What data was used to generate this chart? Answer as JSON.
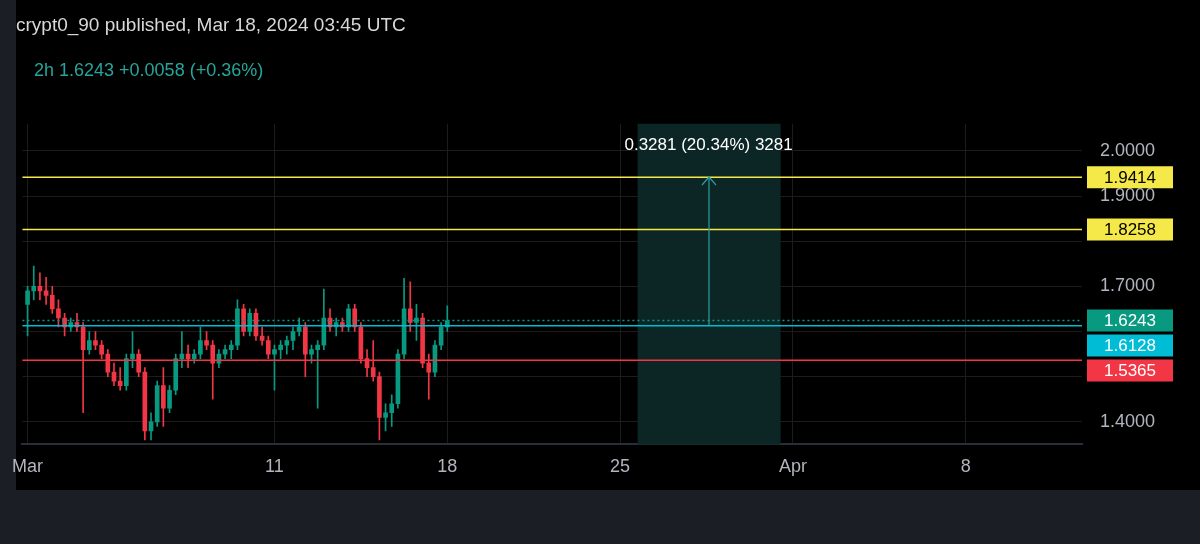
{
  "chart_data": {
    "type": "candlestick",
    "title": "crypt0_90 published, Mar 18, 2024 03:45 UTC",
    "subtitle": "2h 1.6243 +0.0058 (+0.36%)",
    "x": [
      "2024-03-01T00:00",
      "2024-03-01T06:00",
      "2024-03-01T12:00",
      "2024-03-01T18:00",
      "2024-03-02T00:00",
      "2024-03-02T06:00",
      "2024-03-02T12:00",
      "2024-03-02T18:00",
      "2024-03-03T00:00",
      "2024-03-03T06:00",
      "2024-03-03T12:00",
      "2024-03-03T18:00",
      "2024-03-04T00:00",
      "2024-03-04T06:00",
      "2024-03-04T12:00",
      "2024-03-04T18:00",
      "2024-03-05T00:00",
      "2024-03-05T06:00",
      "2024-03-05T12:00",
      "2024-03-05T18:00",
      "2024-03-06T00:00",
      "2024-03-06T06:00",
      "2024-03-06T12:00",
      "2024-03-06T18:00",
      "2024-03-07T00:00",
      "2024-03-07T06:00",
      "2024-03-07T12:00",
      "2024-03-07T18:00",
      "2024-03-08T00:00",
      "2024-03-08T06:00",
      "2024-03-08T12:00",
      "2024-03-08T18:00",
      "2024-03-09T00:00",
      "2024-03-09T06:00",
      "2024-03-09T12:00",
      "2024-03-09T18:00",
      "2024-03-10T00:00",
      "2024-03-10T06:00",
      "2024-03-10T12:00",
      "2024-03-10T18:00",
      "2024-03-11T00:00",
      "2024-03-11T06:00",
      "2024-03-11T12:00",
      "2024-03-11T18:00",
      "2024-03-12T00:00",
      "2024-03-12T06:00",
      "2024-03-12T12:00",
      "2024-03-12T18:00",
      "2024-03-13T00:00",
      "2024-03-13T06:00",
      "2024-03-13T12:00",
      "2024-03-13T18:00",
      "2024-03-14T00:00",
      "2024-03-14T06:00",
      "2024-03-14T12:00",
      "2024-03-14T18:00",
      "2024-03-15T00:00",
      "2024-03-15T06:00",
      "2024-03-15T12:00",
      "2024-03-15T18:00",
      "2024-03-16T00:00",
      "2024-03-16T06:00",
      "2024-03-16T12:00",
      "2024-03-16T18:00",
      "2024-03-17T00:00",
      "2024-03-17T06:00",
      "2024-03-17T12:00",
      "2024-03-17T18:00",
      "2024-03-18T00:00"
    ],
    "ohlc": [
      [
        1.66,
        1.7,
        1.59,
        1.69
      ],
      [
        1.69,
        1.745,
        1.67,
        1.7
      ],
      [
        1.7,
        1.73,
        1.67,
        1.69
      ],
      [
        1.69,
        1.72,
        1.66,
        1.68
      ],
      [
        1.68,
        1.7,
        1.64,
        1.65
      ],
      [
        1.65,
        1.67,
        1.61,
        1.63
      ],
      [
        1.63,
        1.64,
        1.59,
        1.61
      ],
      [
        1.61,
        1.63,
        1.6,
        1.62
      ],
      [
        1.62,
        1.64,
        1.6,
        1.61
      ],
      [
        1.61,
        1.62,
        1.42,
        1.56
      ],
      [
        1.56,
        1.6,
        1.55,
        1.58
      ],
      [
        1.58,
        1.6,
        1.56,
        1.57
      ],
      [
        1.57,
        1.58,
        1.54,
        1.55
      ],
      [
        1.55,
        1.56,
        1.5,
        1.51
      ],
      [
        1.51,
        1.53,
        1.48,
        1.49
      ],
      [
        1.49,
        1.52,
        1.47,
        1.48
      ],
      [
        1.48,
        1.55,
        1.47,
        1.54
      ],
      [
        1.54,
        1.6,
        1.52,
        1.55
      ],
      [
        1.55,
        1.56,
        1.5,
        1.51
      ],
      [
        1.51,
        1.52,
        1.36,
        1.38
      ],
      [
        1.38,
        1.42,
        1.36,
        1.4
      ],
      [
        1.4,
        1.49,
        1.39,
        1.48
      ],
      [
        1.48,
        1.52,
        1.39,
        1.43
      ],
      [
        1.43,
        1.48,
        1.42,
        1.47
      ],
      [
        1.47,
        1.55,
        1.46,
        1.54
      ],
      [
        1.54,
        1.6,
        1.52,
        1.55
      ],
      [
        1.55,
        1.57,
        1.52,
        1.54
      ],
      [
        1.54,
        1.56,
        1.53,
        1.55
      ],
      [
        1.55,
        1.61,
        1.54,
        1.58
      ],
      [
        1.58,
        1.6,
        1.56,
        1.57
      ],
      [
        1.57,
        1.58,
        1.45,
        1.53
      ],
      [
        1.53,
        1.56,
        1.52,
        1.55
      ],
      [
        1.55,
        1.57,
        1.54,
        1.56
      ],
      [
        1.56,
        1.58,
        1.54,
        1.57
      ],
      [
        1.57,
        1.67,
        1.56,
        1.65
      ],
      [
        1.65,
        1.66,
        1.59,
        1.6
      ],
      [
        1.6,
        1.65,
        1.59,
        1.64
      ],
      [
        1.64,
        1.65,
        1.58,
        1.59
      ],
      [
        1.59,
        1.61,
        1.57,
        1.58
      ],
      [
        1.58,
        1.59,
        1.54,
        1.55
      ],
      [
        1.55,
        1.57,
        1.47,
        1.56
      ],
      [
        1.56,
        1.58,
        1.54,
        1.57
      ],
      [
        1.57,
        1.59,
        1.55,
        1.58
      ],
      [
        1.58,
        1.61,
        1.56,
        1.6
      ],
      [
        1.6,
        1.63,
        1.59,
        1.61
      ],
      [
        1.61,
        1.62,
        1.5,
        1.55
      ],
      [
        1.55,
        1.57,
        1.53,
        1.56
      ],
      [
        1.56,
        1.58,
        1.43,
        1.57
      ],
      [
        1.57,
        1.694,
        1.56,
        1.63
      ],
      [
        1.63,
        1.65,
        1.6,
        1.61
      ],
      [
        1.61,
        1.63,
        1.59,
        1.62
      ],
      [
        1.62,
        1.63,
        1.6,
        1.61
      ],
      [
        1.61,
        1.66,
        1.6,
        1.65
      ],
      [
        1.65,
        1.66,
        1.6,
        1.61
      ],
      [
        1.61,
        1.62,
        1.53,
        1.54
      ],
      [
        1.54,
        1.56,
        1.5,
        1.52
      ],
      [
        1.52,
        1.58,
        1.49,
        1.5
      ],
      [
        1.5,
        1.51,
        1.36,
        1.41
      ],
      [
        1.41,
        1.44,
        1.38,
        1.42
      ],
      [
        1.42,
        1.46,
        1.39,
        1.44
      ],
      [
        1.44,
        1.56,
        1.43,
        1.55
      ],
      [
        1.55,
        1.718,
        1.54,
        1.65
      ],
      [
        1.65,
        1.71,
        1.6,
        1.62
      ],
      [
        1.62,
        1.66,
        1.58,
        1.63
      ],
      [
        1.63,
        1.64,
        1.52,
        1.53
      ],
      [
        1.53,
        1.55,
        1.45,
        1.51
      ],
      [
        1.51,
        1.58,
        1.5,
        1.57
      ],
      [
        1.57,
        1.62,
        1.56,
        1.61
      ],
      [
        1.61,
        1.657,
        1.6,
        1.6243
      ]
    ],
    "xlim": [
      "2024-02-29T19:00",
      "2024-04-12T17:00"
    ],
    "xticks": [
      {
        "value": "2024-03-01",
        "label": "Mar"
      },
      {
        "value": "2024-03-11",
        "label": "11"
      },
      {
        "value": "2024-03-18",
        "label": "18"
      },
      {
        "value": "2024-03-25",
        "label": "25"
      },
      {
        "value": "2024-04-01",
        "label": "Apr"
      },
      {
        "value": "2024-04-08",
        "label": "8"
      }
    ],
    "ylim": [
      1.35,
      2.06
    ],
    "yticks": [
      {
        "value": 1.4,
        "label": "1.4000"
      },
      {
        "value": 1.5,
        "label": null
      },
      {
        "value": 1.6,
        "label": null
      },
      {
        "value": 1.7,
        "label": "1.7000"
      },
      {
        "value": 1.8,
        "label": null
      },
      {
        "value": 1.9,
        "label": "1.9000"
      },
      {
        "value": 2.0,
        "label": "2.0000"
      }
    ],
    "grid": true,
    "ref_lines": [
      {
        "axis": "y",
        "value": 1.9414,
        "label": "1.9414",
        "color": "#f5e94a"
      },
      {
        "axis": "y",
        "value": 1.8258,
        "label": "1.8258",
        "color": "#f5e94a"
      },
      {
        "axis": "y",
        "value": 1.6243,
        "label": "1.6243",
        "color": "#089981",
        "line_style": "dotted"
      },
      {
        "axis": "y",
        "value": 1.6128,
        "label": "1.6128",
        "color": "#00bcd4"
      },
      {
        "axis": "y",
        "value": 1.5365,
        "label": "1.5365",
        "color": "#f23645"
      }
    ],
    "bands": [
      {
        "axis": "x",
        "from": "2024-03-25T17:00",
        "to": "2024-03-31T12:00",
        "color": "#0c2626"
      }
    ],
    "annotations": [
      {
        "text": "0.3281 (20.34%) 3281",
        "x": "2024-03-28T14:00",
        "y": 1.9414
      }
    ]
  }
}
